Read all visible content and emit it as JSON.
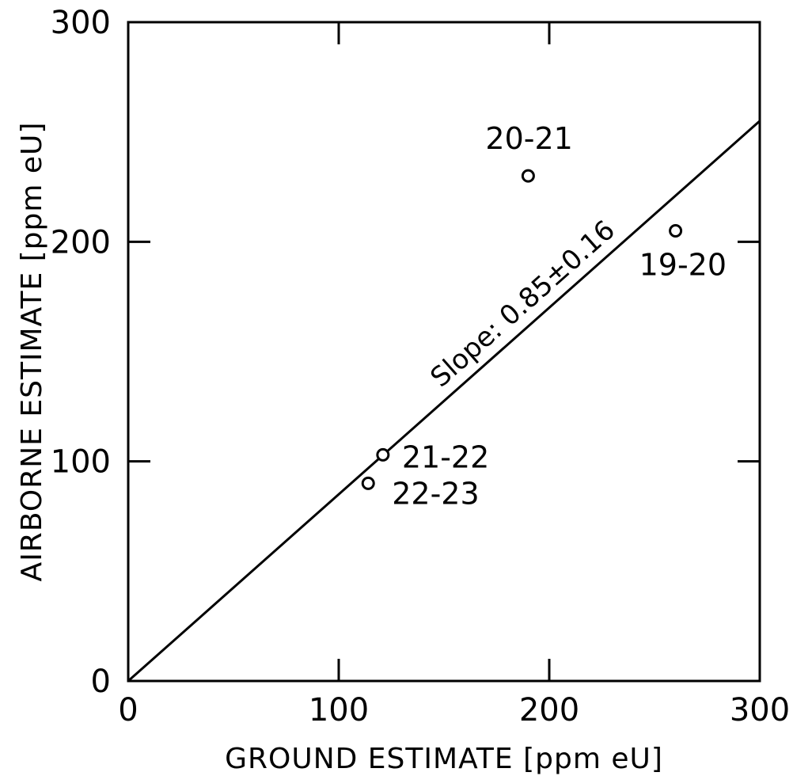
{
  "chart_data": {
    "type": "scatter",
    "xlabel": "GROUND ESTIMATE [ppm eU]",
    "ylabel": "AIRBORNE ESTIMATE [ppm eU]",
    "xlim": [
      0,
      300
    ],
    "ylim": [
      0,
      300
    ],
    "x_ticks": [
      "0",
      "100",
      "200",
      "300"
    ],
    "y_ticks": [
      "0",
      "100",
      "200",
      "300"
    ],
    "grid": false,
    "series": [
      {
        "points": [
          {
            "x": 190,
            "y": 230,
            "label": "20-21"
          },
          {
            "x": 260,
            "y": 205,
            "label": "19-20"
          },
          {
            "x": 121,
            "y": 103,
            "label": "21-22"
          },
          {
            "x": 114,
            "y": 90,
            "label": "22-23"
          }
        ]
      }
    ],
    "fit_line": {
      "slope": 0.85,
      "intercept": 0,
      "label": "Slope: 0.85±0.16"
    }
  }
}
